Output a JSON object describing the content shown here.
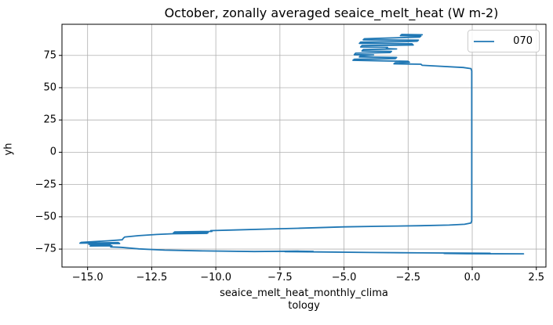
{
  "chart_data": {
    "type": "line",
    "title": "October, zonally averaged seaice_melt_heat (W m-2)",
    "xlabel": "seaice_melt_heat_monthly_clima\ntology",
    "ylabel": "yh",
    "grid": true,
    "legend_position": "upper right",
    "line_color": "#1f77b4",
    "grid_color": "#b0b0b0",
    "spine_color": "#000000",
    "xlim": [
      -16.0,
      2.875
    ],
    "ylim": [
      -88.9,
      99.1
    ],
    "xticks": [
      {
        "value": -15.0,
        "label": "−15.0"
      },
      {
        "value": -12.5,
        "label": "−12.5"
      },
      {
        "value": -10.0,
        "label": "−10.0"
      },
      {
        "value": -7.5,
        "label": "−7.5"
      },
      {
        "value": -5.0,
        "label": "−5.0"
      },
      {
        "value": -2.5,
        "label": "−2.5"
      },
      {
        "value": 0.0,
        "label": "0.0"
      },
      {
        "value": 2.5,
        "label": "2.5"
      }
    ],
    "yticks": [
      {
        "value": 75,
        "label": "75"
      },
      {
        "value": 50,
        "label": "50"
      },
      {
        "value": 25,
        "label": "25"
      },
      {
        "value": 0,
        "label": "0"
      },
      {
        "value": -25,
        "label": "−25"
      },
      {
        "value": -50,
        "label": "−50"
      },
      {
        "value": -75,
        "label": "−75"
      }
    ],
    "series": [
      {
        "name": "070",
        "color": "#1f77b4",
        "points": [
          [
            -1.95,
            91.0
          ],
          [
            -2.75,
            91.2
          ],
          [
            -2.8,
            90.3
          ],
          [
            -2.0,
            90.0
          ],
          [
            -2.05,
            89.2
          ],
          [
            -3.5,
            88.3
          ],
          [
            -4.2,
            87.9
          ],
          [
            -4.25,
            87.1
          ],
          [
            -2.1,
            86.8
          ],
          [
            -2.15,
            86.0
          ],
          [
            -2.6,
            85.7
          ],
          [
            -4.35,
            85.3
          ],
          [
            -4.4,
            84.3
          ],
          [
            -2.35,
            84.0
          ],
          [
            -2.3,
            83.0
          ],
          [
            -4.3,
            82.6
          ],
          [
            -4.35,
            81.5
          ],
          [
            -3.3,
            81.2
          ],
          [
            -3.35,
            80.3
          ],
          [
            -2.95,
            80.0
          ],
          [
            -4.25,
            79.5
          ],
          [
            -4.3,
            78.4
          ],
          [
            -3.15,
            78.1
          ],
          [
            -3.2,
            77.2
          ],
          [
            -4.55,
            76.7
          ],
          [
            -4.6,
            75.6
          ],
          [
            -3.85,
            75.3
          ],
          [
            -4.35,
            74.7
          ],
          [
            -4.4,
            73.8
          ],
          [
            -2.95,
            73.4
          ],
          [
            -3.0,
            72.5
          ],
          [
            -4.6,
            72.0
          ],
          [
            -4.65,
            71.2
          ],
          [
            -3.55,
            70.8
          ],
          [
            -2.5,
            70.4
          ],
          [
            -2.45,
            69.6
          ],
          [
            -3.0,
            69.3
          ],
          [
            -3.05,
            68.5
          ],
          [
            -2.0,
            68.2
          ],
          [
            -1.95,
            67.3
          ],
          [
            -0.35,
            65.6
          ],
          [
            -0.05,
            64.8
          ],
          [
            -0.02,
            63.0
          ],
          [
            -0.02,
            -53.0
          ],
          [
            -0.05,
            -54.8
          ],
          [
            -0.3,
            -55.8
          ],
          [
            -0.9,
            -56.4
          ],
          [
            -2.0,
            -56.9
          ],
          [
            -3.5,
            -57.3
          ],
          [
            -5.0,
            -57.8
          ],
          [
            -6.8,
            -58.9
          ],
          [
            -8.0,
            -59.5
          ],
          [
            -9.3,
            -60.2
          ],
          [
            -10.2,
            -60.7
          ],
          [
            -10.15,
            -61.3
          ],
          [
            -11.6,
            -61.7
          ],
          [
            -11.65,
            -62.4
          ],
          [
            -10.3,
            -62.2
          ],
          [
            -10.35,
            -62.8
          ],
          [
            -11.7,
            -63.1
          ],
          [
            -12.3,
            -63.7
          ],
          [
            -13.0,
            -64.6
          ],
          [
            -13.55,
            -65.6
          ],
          [
            -13.6,
            -66.4
          ],
          [
            -13.65,
            -67.8
          ],
          [
            -14.2,
            -68.6
          ],
          [
            -15.25,
            -69.8
          ],
          [
            -15.3,
            -70.4
          ],
          [
            -13.8,
            -70.0
          ],
          [
            -13.75,
            -70.7
          ],
          [
            -14.9,
            -70.5
          ],
          [
            -14.95,
            -71.3
          ],
          [
            -14.1,
            -71.1
          ],
          [
            -14.15,
            -71.9
          ],
          [
            -14.85,
            -71.7
          ],
          [
            -14.9,
            -72.6
          ],
          [
            -14.05,
            -72.4
          ],
          [
            -14.1,
            -73.3
          ],
          [
            -13.7,
            -73.6
          ],
          [
            -13.0,
            -74.8
          ],
          [
            -12.0,
            -75.8
          ],
          [
            -10.5,
            -76.4
          ],
          [
            -8.5,
            -76.9
          ],
          [
            -6.8,
            -76.6
          ],
          [
            -6.2,
            -76.8
          ],
          [
            -7.3,
            -77.0
          ],
          [
            -6.0,
            -77.2
          ],
          [
            -4.0,
            -77.6
          ],
          [
            -2.0,
            -77.9
          ],
          [
            -0.5,
            -78.1
          ],
          [
            0.7,
            -78.2
          ],
          [
            -1.1,
            -78.35
          ],
          [
            -0.2,
            -78.6
          ],
          [
            2.0,
            -78.65
          ]
        ]
      }
    ],
    "legend_entries": [
      {
        "label": "070",
        "color": "#1f77b4"
      }
    ]
  }
}
